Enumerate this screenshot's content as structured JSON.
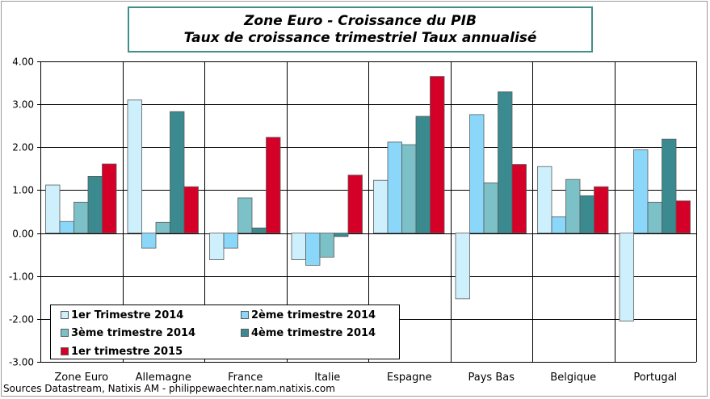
{
  "chart_data": {
    "type": "bar",
    "title": "Zone Euro - Croissance du PIB",
    "subtitle": "Taux de croissance trimestriel Taux annualisé",
    "categories": [
      "Zone Euro",
      "Allemagne",
      "France",
      "Italie",
      "Espagne",
      "Pays Bas",
      "Belgique",
      "Portugal"
    ],
    "ylim": [
      -3,
      4
    ],
    "yticks": [
      "4.00",
      "3.00",
      "2.00",
      "1.00",
      "0.00",
      "-1.00",
      "-2.00",
      "-3.00"
    ],
    "ytick_values": [
      4,
      3,
      2,
      1,
      0,
      -1,
      -2,
      -3
    ],
    "grid": true,
    "legend_position": "bottom-left",
    "series": [
      {
        "name": "1er Trimestre 2014",
        "color": "#cdf0fc",
        "values": [
          1.12,
          3.1,
          -0.62,
          -0.62,
          1.23,
          -1.53,
          1.55,
          -2.05
        ]
      },
      {
        "name": "2ème trimestre 2014",
        "color": "#8ad7fa",
        "values": [
          0.27,
          -0.35,
          -0.35,
          -0.75,
          2.12,
          2.76,
          0.38,
          1.94
        ]
      },
      {
        "name": "3ème trimestre 2014",
        "color": "#7cc1c8",
        "values": [
          0.72,
          0.25,
          0.82,
          -0.56,
          2.06,
          1.17,
          1.25,
          0.72
        ]
      },
      {
        "name": "4ème trimestre 2014",
        "color": "#3a8a8f",
        "values": [
          1.32,
          2.83,
          0.12,
          -0.08,
          2.72,
          3.29,
          0.87,
          2.19
        ]
      },
      {
        "name": "1er trimestre 2015",
        "color": "#d40027",
        "values": [
          1.61,
          1.08,
          2.23,
          1.35,
          3.65,
          1.6,
          1.08,
          0.75
        ]
      }
    ]
  },
  "source": "Sources Datastream, Natixis AM - philippewaechter.nam.natixis.com"
}
